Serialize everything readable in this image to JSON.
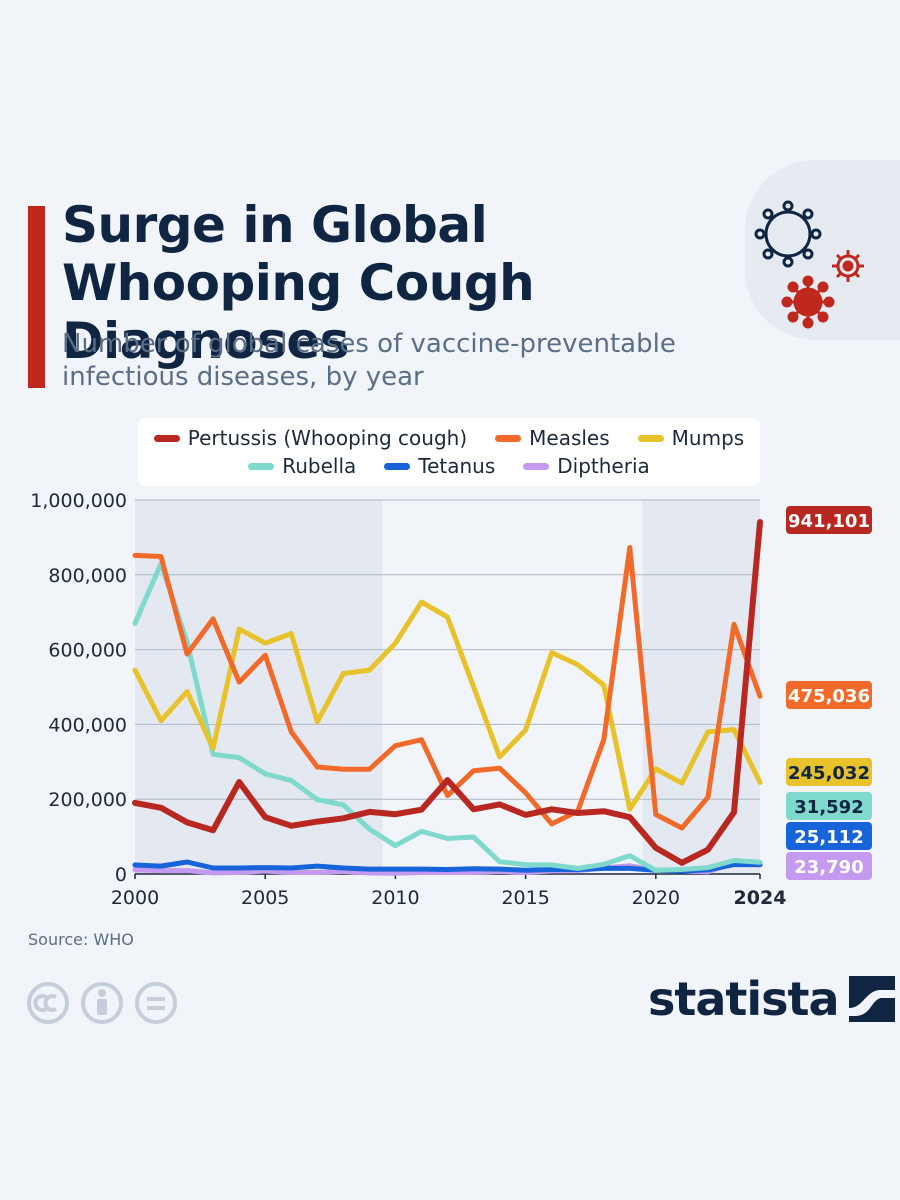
{
  "header": {
    "title": "Surge in Global Whooping Cough Diagnoses",
    "subtitle": "Number of global cases of vaccine-preventable infectious diseases, by year"
  },
  "footer": {
    "source": "Source: WHO",
    "brand": "statista"
  },
  "icons": [
    "virus-outline-icon",
    "virus-small-icon",
    "virus-filled-icon",
    "cc-icon",
    "by-icon",
    "nd-icon",
    "statista-logo-icon"
  ],
  "chart_data": {
    "type": "line",
    "x": [
      2000,
      2001,
      2002,
      2003,
      2004,
      2005,
      2006,
      2007,
      2008,
      2009,
      2010,
      2011,
      2012,
      2013,
      2014,
      2015,
      2016,
      2017,
      2018,
      2019,
      2020,
      2021,
      2022,
      2023,
      2024
    ],
    "x_ticks": [
      "2000",
      "2005",
      "2010",
      "2015",
      "2020",
      "2024"
    ],
    "y_ticks": [
      "0",
      "200,000",
      "400,000",
      "600,000",
      "800,000",
      "1,000,000"
    ],
    "ylim": [
      0,
      1000000
    ],
    "xlim": [
      2000,
      2024
    ],
    "grid": true,
    "legend_position": "top",
    "series": [
      {
        "name": "Pertussis (Whooping cough)",
        "color": "#b82820",
        "end_label": "941,101",
        "values": [
          190000,
          177000,
          138000,
          117000,
          246000,
          152000,
          129000,
          140000,
          149000,
          166000,
          160000,
          172000,
          251000,
          173000,
          186000,
          158000,
          173000,
          163000,
          168000,
          152000,
          70000,
          30000,
          65000,
          165000,
          941101
        ]
      },
      {
        "name": "Measles",
        "color": "#f26a2a",
        "end_label": "475,036",
        "values": [
          852000,
          849000,
          588000,
          682000,
          513000,
          585000,
          380000,
          286000,
          280000,
          280000,
          343000,
          359000,
          210000,
          276000,
          283000,
          217000,
          134000,
          168000,
          359000,
          873000,
          159000,
          123000,
          205000,
          668000,
          475036
        ]
      },
      {
        "name": "Mumps",
        "color": "#e8c22a",
        "end_label": "245,032",
        "values": [
          545000,
          410000,
          488000,
          336000,
          655000,
          617000,
          643000,
          407000,
          536000,
          545000,
          617000,
          727000,
          687000,
          501000,
          313000,
          385000,
          592000,
          560000,
          505000,
          173000,
          281000,
          243000,
          380000,
          386000,
          245032
        ]
      },
      {
        "name": "Rubella",
        "color": "#7fd9cc",
        "end_label": "31,592",
        "values": [
          670000,
          830000,
          620000,
          320000,
          311000,
          268000,
          250000,
          199000,
          185000,
          120000,
          76000,
          114000,
          95000,
          99000,
          33000,
          25000,
          24000,
          15000,
          26000,
          49000,
          10000,
          12000,
          17000,
          36000,
          31592
        ]
      },
      {
        "name": "Tetanus",
        "color": "#1763d9",
        "end_label": "25,112",
        "values": [
          24000,
          21000,
          32000,
          16000,
          16000,
          17000,
          16000,
          21000,
          16000,
          13000,
          13000,
          13000,
          12000,
          14000,
          13000,
          10000,
          12000,
          12000,
          15000,
          15000,
          10000,
          8000,
          11000,
          25000,
          25112
        ]
      },
      {
        "name": "Diptheria",
        "color": "#c49af0",
        "end_label": "23,790",
        "values": [
          11000,
          9000,
          9000,
          3000,
          4000,
          8000,
          4000,
          4000,
          7000,
          3000,
          2000,
          4000,
          4000,
          4000,
          7000,
          4000,
          8000,
          9000,
          16000,
          22000,
          10000,
          8000,
          6000,
          30000,
          23790
        ]
      }
    ]
  }
}
